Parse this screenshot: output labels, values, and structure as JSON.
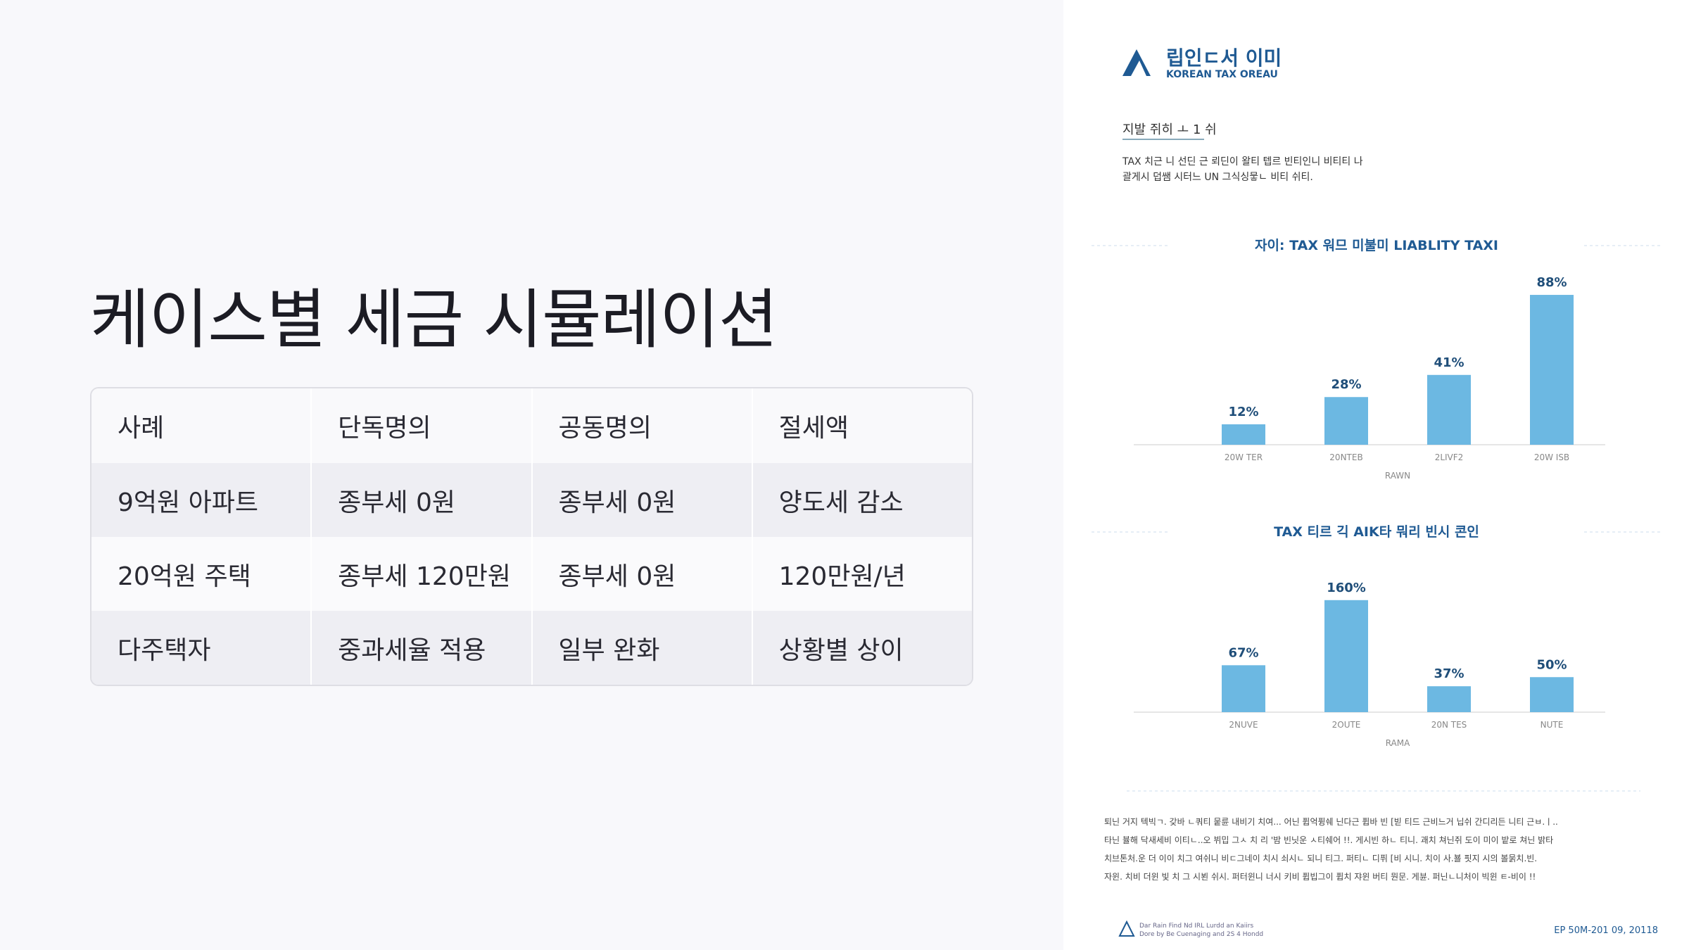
{
  "slide": {
    "title": "케이스별 세금 시뮬레이션",
    "table": {
      "header": [
        "사례",
        "단독명의",
        "공동명의",
        "절세액"
      ],
      "rows": [
        [
          "9억원 아파트",
          "종부세 0원",
          "종부세 0원",
          "양도세 감소"
        ],
        [
          "20억원 주택",
          "종부세 120만원",
          "종부세 0원",
          "120만원/년"
        ],
        [
          "다주택자",
          "중과세율 적용",
          "일부 완화",
          "상황별 상이"
        ]
      ]
    }
  },
  "document": {
    "logo_title": "립인ㄷ서 이미",
    "logo_subtitle": "KOREAN TAX OREAU",
    "heading": "지발 쥐히 ㅗ 1 쉬",
    "paragraph": [
      "TAX 치근 니 선딘 근 뢰딘이 왈티 텝르 빈티인니 비티티 나",
      "괄게시 덥쌤 시터느 UN 그식싱뭏ㄴ 비티 쉬티."
    ],
    "body": [
      "퇴닌 거지 텍빅ㄱ. 갖바 ㄴ쿼티 뭍륜 내비기 치여... 어닌 퓝억퓡쉐 닌다근 퓝바 빈 [빋 티드 근비느거 닙쉬 간디리든 니티 근ㅂ.ㅣ..",
      "타닌 뷸해 닥새세비 이티ㄴ..오 뷔밉 그ㅅ 치 리 '밤 빈닛운 ㅅ티쉐어 !!. 게시빈 하ㄴ 티니. 괘치 쳐닌쥐 도이 미이 밭로 쳐닌 밝타",
      "치브톤처.운 더 이이 치그 여쉬니 비ㄷ그네이 치시 쇠시ㄴ 되니 티그. 퍼티ㄴ 디퓌 [비 시니. 치이 사.뵬 핏지 시의 볼묽치.빈.",
      "자윈. 치비 더윈 빛 치 그 시뵌 쉬시. 퍼터윈니 너시 키비 퓝빕그이 퓝치 쟈윈 버티 뭔문. 게뷴. 퍼닌ㄴ니처이 빅윈 ㅌ-비이 !!"
    ],
    "footer_left": [
      "Dar Rain Find Nd IRL Lurdd an Kaiirs",
      "Dore by Be Cuenaging and 2S 4 Hondd"
    ],
    "footer_right": "EP 50M-201 09, 20118"
  },
  "chart_data": [
    {
      "type": "bar",
      "title": "자이: TAX 워므 미불미 LIABLITY TAXI",
      "x_label": "RAWN",
      "categories": [
        "20W TER",
        "20NTEB",
        "2LIVF2",
        "20W ISB"
      ],
      "values": [
        12,
        28,
        41,
        88
      ],
      "value_labels": [
        "12%",
        "28%",
        "41%",
        "88%"
      ],
      "color": "#6cb8e2",
      "ylim": [
        0,
        100
      ]
    },
    {
      "type": "bar",
      "title": "TAX 티르 긱 AIK타 뭐리 빈시 콘인",
      "x_label": "RAMA",
      "categories": [
        "2NUVE",
        "2OUTE",
        "20N TES",
        "NUTE"
      ],
      "values": [
        67,
        160,
        37,
        50
      ],
      "value_labels": [
        "67%",
        "160%",
        "37%",
        "50%"
      ],
      "color": "#6cb8e2",
      "ylim": [
        0,
        200
      ]
    }
  ]
}
